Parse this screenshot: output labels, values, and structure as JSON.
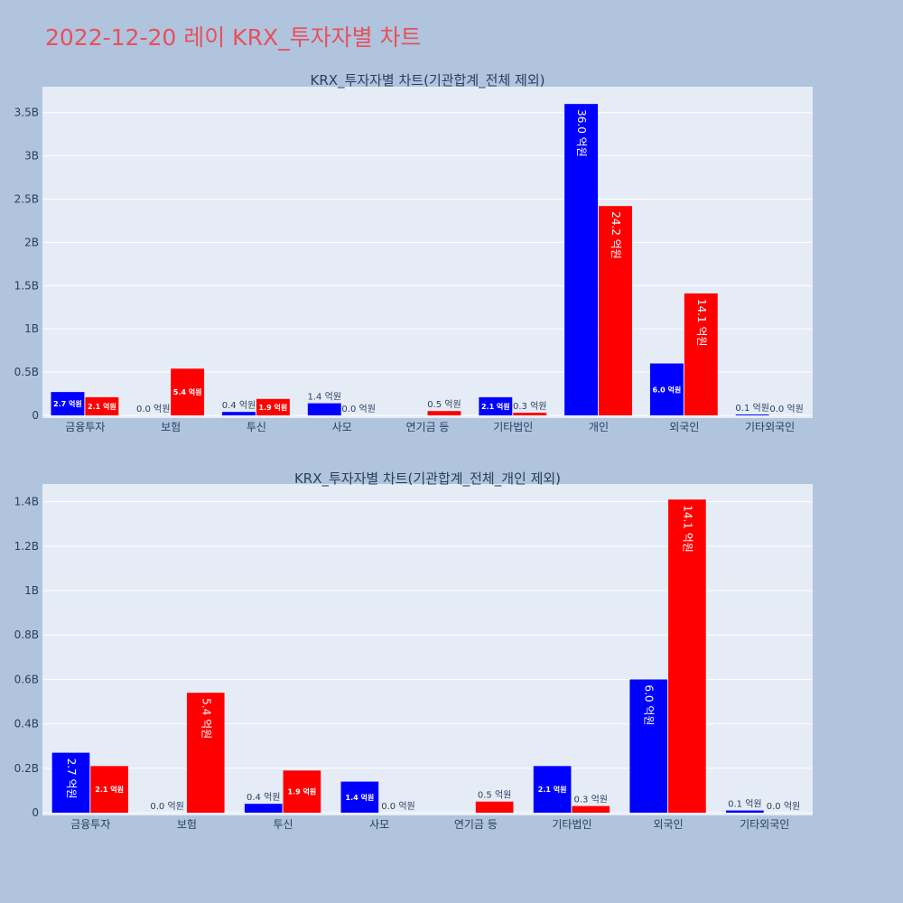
{
  "page": {
    "title": "2022-12-20 레이 KRX_투자자별 차트"
  },
  "chart_data": [
    {
      "type": "bar",
      "title": "KRX_투자자별 차트(기관합계_전체 제외)",
      "categories": [
        "금융투자",
        "보험",
        "투신",
        "사모",
        "연기금 등",
        "기타법인",
        "개인",
        "외국인",
        "기타외국인"
      ],
      "series": [
        {
          "color": "#0000ff",
          "values": [
            0.27,
            0.0,
            0.04,
            0.14,
            0.0,
            0.21,
            3.6,
            0.6,
            0.01
          ],
          "labels": [
            "2.7 억원",
            "0.0 억원",
            "0.4 억원",
            "1.4 억원",
            "",
            "2.1 억원",
            "36.0 억원",
            "6.0 억원",
            "0.1 억원"
          ]
        },
        {
          "color": "#ff0000",
          "values": [
            0.21,
            0.54,
            0.19,
            0.0,
            0.05,
            0.03,
            2.42,
            1.41,
            0.0
          ],
          "labels": [
            "2.1 억원",
            "5.4 억원",
            "1.9 억원",
            "0.0 억원",
            "0.5 억원",
            "0.3 억원",
            "24.2 억원",
            "14.1 억원",
            "0.0 억원"
          ]
        }
      ],
      "ylim": [
        0,
        3.8
      ],
      "yticks": [
        0,
        0.5,
        1,
        1.5,
        2,
        2.5,
        3,
        3.5
      ],
      "ytick_labels": [
        "0",
        "0.5B",
        "1B",
        "1.5B",
        "2B",
        "2.5B",
        "3B",
        "3.5B"
      ],
      "grid": true
    },
    {
      "type": "bar",
      "title": "KRX_투자자별 차트(기관합계_전체_개인 제외)",
      "categories": [
        "금융투자",
        "보험",
        "투신",
        "사모",
        "연기금 등",
        "기타법인",
        "외국인",
        "기타외국인"
      ],
      "series": [
        {
          "color": "#0000ff",
          "values": [
            0.27,
            0.0,
            0.04,
            0.14,
            0.0,
            0.21,
            0.6,
            0.01
          ],
          "labels": [
            "2.7 억원",
            "0.0 억원",
            "0.4 억원",
            "1.4 억원",
            "",
            "2.1 억원",
            "6.0 억원",
            "0.1 억원"
          ]
        },
        {
          "color": "#ff0000",
          "values": [
            0.21,
            0.54,
            0.19,
            0.0,
            0.05,
            0.03,
            1.41,
            0.0
          ],
          "labels": [
            "2.1 억원",
            "5.4 억원",
            "1.9 억원",
            "0.0 억원",
            "0.5 억원",
            "0.3 억원",
            "14.1 억원",
            "0.0 억원"
          ]
        }
      ],
      "ylim": [
        0,
        1.48
      ],
      "yticks": [
        0,
        0.2,
        0.4,
        0.6,
        0.8,
        1.0,
        1.2,
        1.4
      ],
      "ytick_labels": [
        "0",
        "0.2B",
        "0.4B",
        "0.6B",
        "0.8B",
        "1B",
        "1.2B",
        "1.4B"
      ],
      "grid": true
    }
  ]
}
